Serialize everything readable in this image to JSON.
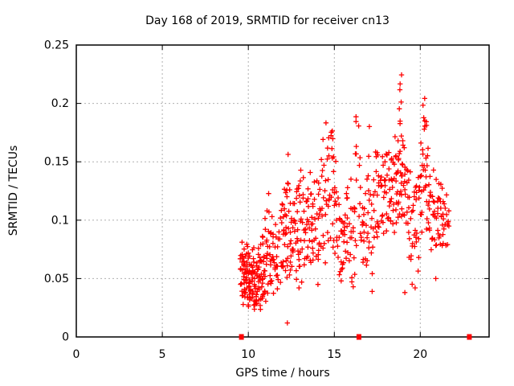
{
  "chart_data": {
    "type": "scatter",
    "title": "Day 168 of 2019, SRMTID for receiver cn13",
    "xlabel": "GPS time / hours",
    "ylabel": "SRMTID / TECUs",
    "xlim": [
      0,
      24
    ],
    "ylim": [
      0,
      0.25
    ],
    "xticks": {
      "values": [
        0,
        5,
        10,
        15,
        20
      ],
      "labels": [
        "0",
        "5",
        "10",
        "15",
        "20"
      ]
    },
    "yticks": {
      "values": [
        0,
        0.05,
        0.1,
        0.15,
        0.2,
        0.25
      ],
      "labels": [
        "0",
        "0.05",
        "0.1",
        "0.15",
        "0.2",
        "0.25"
      ]
    },
    "grid": true,
    "grid_color": "#b0b0b0",
    "border_color": "#000000",
    "columns_format": "[x_center_hours, y_min_TECUs, y_max_TECUs, point_count] - vertical strings of + markers",
    "series": [
      {
        "name": "srmtid-points",
        "marker": "plus",
        "color": "#ff0000",
        "columns": [
          [
            9.58,
            0.038,
            0.072,
            10
          ],
          [
            9.7,
            0.032,
            0.08,
            14
          ],
          [
            9.82,
            0.035,
            0.068,
            12
          ],
          [
            9.94,
            0.03,
            0.078,
            14
          ],
          [
            10.06,
            0.028,
            0.07,
            14
          ],
          [
            10.18,
            0.033,
            0.062,
            12
          ],
          [
            10.3,
            0.028,
            0.075,
            14
          ],
          [
            10.42,
            0.022,
            0.058,
            12
          ],
          [
            10.54,
            0.028,
            0.068,
            12
          ],
          [
            10.66,
            0.024,
            0.08,
            12
          ],
          [
            10.78,
            0.028,
            0.088,
            12
          ],
          [
            10.9,
            0.03,
            0.068,
            10
          ],
          [
            11.02,
            0.038,
            0.095,
            10
          ],
          [
            11.14,
            0.04,
            0.115,
            9
          ],
          [
            11.26,
            0.042,
            0.082,
            8
          ],
          [
            11.38,
            0.048,
            0.095,
            8
          ],
          [
            11.5,
            0.045,
            0.085,
            7
          ],
          [
            11.62,
            0.05,
            0.09,
            7
          ],
          [
            11.75,
            0.042,
            0.092,
            7
          ],
          [
            11.88,
            0.05,
            0.108,
            7
          ],
          [
            12.0,
            0.055,
            0.12,
            8
          ],
          [
            12.14,
            0.058,
            0.132,
            9
          ],
          [
            12.26,
            0.06,
            0.148,
            11
          ],
          [
            12.38,
            0.055,
            0.135,
            9
          ],
          [
            12.5,
            0.052,
            0.1,
            7
          ],
          [
            12.64,
            0.065,
            0.118,
            9
          ],
          [
            12.78,
            0.058,
            0.135,
            9
          ],
          [
            12.92,
            0.05,
            0.138,
            9
          ],
          [
            13.06,
            0.06,
            0.145,
            9
          ],
          [
            13.2,
            0.07,
            0.14,
            8
          ],
          [
            13.34,
            0.068,
            0.118,
            8
          ],
          [
            13.48,
            0.072,
            0.128,
            8
          ],
          [
            13.62,
            0.065,
            0.132,
            8
          ],
          [
            13.76,
            0.06,
            0.115,
            8
          ],
          [
            13.9,
            0.068,
            0.125,
            8
          ],
          [
            14.04,
            0.055,
            0.135,
            8
          ],
          [
            14.18,
            0.068,
            0.142,
            8
          ],
          [
            14.32,
            0.065,
            0.155,
            8
          ],
          [
            14.46,
            0.075,
            0.168,
            8
          ],
          [
            14.6,
            0.08,
            0.165,
            7
          ],
          [
            14.74,
            0.088,
            0.175,
            7
          ],
          [
            14.85,
            0.105,
            0.187,
            8
          ],
          [
            14.96,
            0.082,
            0.165,
            7
          ],
          [
            15.1,
            0.07,
            0.148,
            8
          ],
          [
            15.24,
            0.057,
            0.12,
            7
          ],
          [
            15.38,
            0.052,
            0.112,
            7
          ],
          [
            15.52,
            0.053,
            0.105,
            7
          ],
          [
            15.66,
            0.065,
            0.118,
            7
          ],
          [
            15.8,
            0.07,
            0.128,
            7
          ],
          [
            15.94,
            0.062,
            0.125,
            7
          ],
          [
            16.08,
            0.047,
            0.112,
            7
          ],
          [
            16.22,
            0.06,
            0.13,
            7
          ],
          [
            16.28,
            0.15,
            0.184,
            5
          ],
          [
            16.48,
            0.09,
            0.172,
            7
          ],
          [
            16.62,
            0.055,
            0.115,
            7
          ],
          [
            16.76,
            0.07,
            0.124,
            7
          ],
          [
            16.9,
            0.064,
            0.13,
            7
          ],
          [
            17.04,
            0.075,
            0.168,
            8
          ],
          [
            17.18,
            0.052,
            0.112,
            6
          ],
          [
            17.32,
            0.08,
            0.138,
            7
          ],
          [
            17.46,
            0.088,
            0.168,
            8
          ],
          [
            17.6,
            0.085,
            0.15,
            7
          ],
          [
            17.74,
            0.094,
            0.155,
            8
          ],
          [
            17.88,
            0.098,
            0.16,
            8
          ],
          [
            18.02,
            0.1,
            0.168,
            8
          ],
          [
            18.16,
            0.096,
            0.15,
            8
          ],
          [
            18.3,
            0.1,
            0.152,
            8
          ],
          [
            18.44,
            0.098,
            0.156,
            9
          ],
          [
            18.58,
            0.095,
            0.162,
            9
          ],
          [
            18.72,
            0.102,
            0.168,
            9
          ],
          [
            18.84,
            0.16,
            0.227,
            9
          ],
          [
            18.84,
            0.1,
            0.155,
            8
          ],
          [
            18.98,
            0.105,
            0.17,
            9
          ],
          [
            19.12,
            0.095,
            0.158,
            8
          ],
          [
            19.26,
            0.09,
            0.15,
            8
          ],
          [
            19.4,
            0.062,
            0.13,
            7
          ],
          [
            19.54,
            0.056,
            0.12,
            7
          ],
          [
            19.68,
            0.065,
            0.135,
            7
          ],
          [
            19.82,
            0.07,
            0.14,
            7
          ],
          [
            19.96,
            0.078,
            0.148,
            7
          ],
          [
            20.1,
            0.095,
            0.165,
            8
          ],
          [
            20.22,
            0.16,
            0.21,
            7
          ],
          [
            20.22,
            0.125,
            0.155,
            5
          ],
          [
            20.34,
            0.1,
            0.185,
            8
          ],
          [
            20.46,
            0.09,
            0.158,
            7
          ],
          [
            20.6,
            0.078,
            0.14,
            8
          ],
          [
            20.74,
            0.074,
            0.134,
            8
          ],
          [
            20.88,
            0.07,
            0.128,
            8
          ],
          [
            21.02,
            0.08,
            0.125,
            8
          ],
          [
            21.16,
            0.084,
            0.13,
            8
          ],
          [
            21.3,
            0.076,
            0.12,
            8
          ],
          [
            21.44,
            0.08,
            0.115,
            7
          ],
          [
            21.58,
            0.084,
            0.118,
            6
          ]
        ],
        "points": [
          [
            12.27,
            0.012
          ],
          [
            17.2,
            0.039
          ],
          [
            19.1,
            0.038
          ],
          [
            19.7,
            0.042
          ],
          [
            20.9,
            0.05
          ],
          [
            16.1,
            0.043
          ],
          [
            12.95,
            0.042
          ],
          [
            13.1,
            0.047
          ],
          [
            14.05,
            0.045
          ],
          [
            15.4,
            0.048
          ],
          [
            21.66,
            0.095
          ],
          [
            21.66,
            0.108
          ]
        ]
      },
      {
        "name": "baseline-markers",
        "marker": "filled-square",
        "color": "#ff0000",
        "points": [
          [
            9.6,
            0
          ],
          [
            16.43,
            0
          ],
          [
            22.85,
            0
          ]
        ]
      }
    ]
  }
}
